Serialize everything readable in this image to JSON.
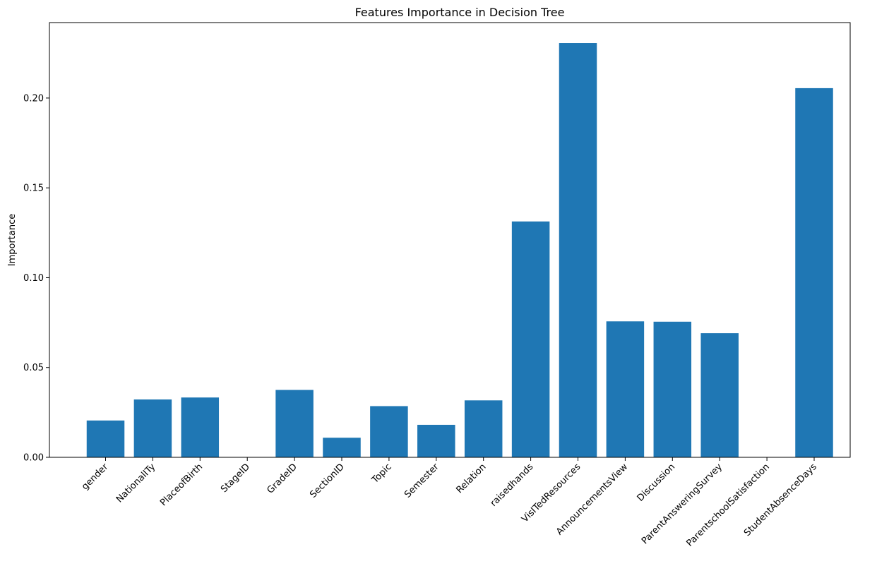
{
  "chart_data": {
    "type": "bar",
    "title": "Features Importance in Decision Tree",
    "xlabel": "",
    "ylabel": "Importance",
    "categories": [
      "gender",
      "NationalITy",
      "PlaceofBirth",
      "StageID",
      "GradeID",
      "SectionID",
      "Topic",
      "Semester",
      "Relation",
      "raisedhands",
      "VisITedResources",
      "AnnouncementsView",
      "Discussion",
      "ParentAnsweringSurvey",
      "ParentschoolSatisfaction",
      "StudentAbsenceDays"
    ],
    "values": [
      0.0205,
      0.0322,
      0.0333,
      0.0,
      0.0375,
      0.0109,
      0.0285,
      0.0181,
      0.0317,
      0.1313,
      0.2306,
      0.0757,
      0.0755,
      0.0691,
      0.0,
      0.2055
    ],
    "ylim": [
      0,
      0.242
    ],
    "yticks": [
      0.0,
      0.05,
      0.1,
      0.15,
      0.2
    ],
    "ytick_labels": [
      "0.00",
      "0.05",
      "0.10",
      "0.15",
      "0.20"
    ],
    "bar_color": "#1f77b4",
    "grid": false,
    "legend": "none"
  }
}
